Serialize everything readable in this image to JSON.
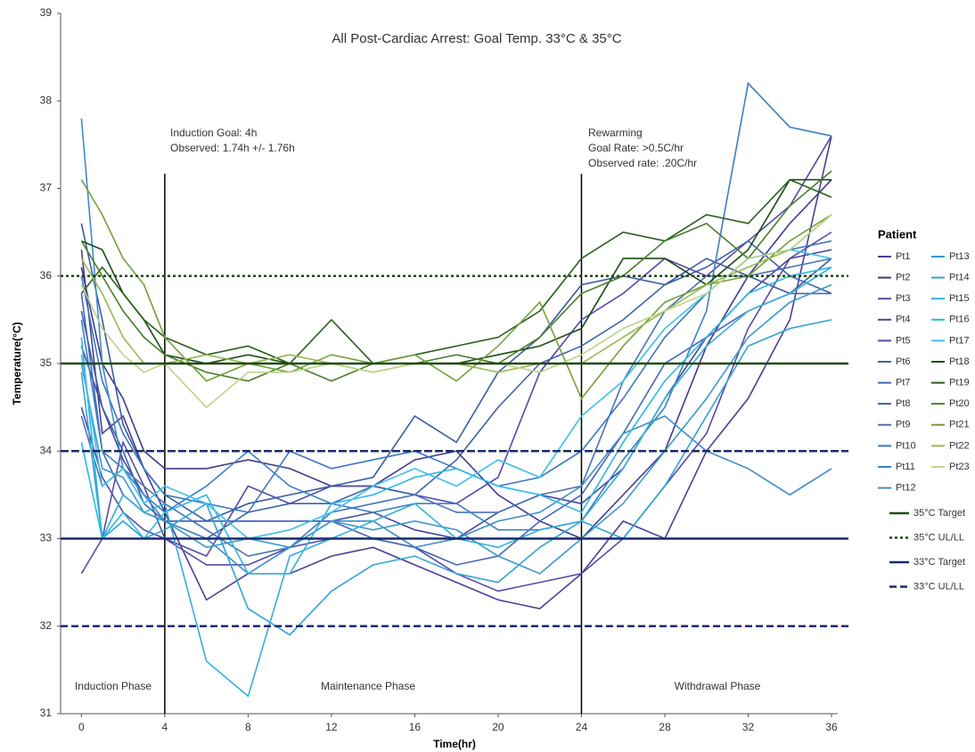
{
  "chart_data": {
    "type": "line",
    "title": "All Post-Cardiac Arrest: Goal Temp. 33°C & 35°C",
    "x_label": "Time(hr)",
    "y_label": "Temperature(°C)",
    "legend_title": "Patient",
    "xlim": [
      -1,
      36.3
    ],
    "ylim": [
      31,
      39
    ],
    "xticks": [
      0,
      4,
      8,
      12,
      16,
      20,
      24,
      28,
      32,
      36
    ],
    "yticks": [
      31,
      32,
      33,
      34,
      35,
      36,
      37,
      38,
      39
    ],
    "x": [
      0,
      1,
      2,
      3,
      4,
      6,
      8,
      10,
      12,
      14,
      16,
      18,
      20,
      22,
      24,
      26,
      28,
      30,
      32,
      34,
      36
    ],
    "series": [
      {
        "name": "Pt1",
        "color": "#4a3f96",
        "values": [
          36.3,
          34.2,
          34.4,
          33.8,
          33.3,
          32.3,
          32.6,
          32.6,
          32.8,
          32.9,
          32.7,
          32.5,
          32.3,
          32.2,
          32.6,
          33.2,
          33.0,
          34.0,
          34.6,
          35.5,
          37.6
        ]
      },
      {
        "name": "Pt2",
        "color": "#3f3a8a",
        "values": [
          36.1,
          35.0,
          34.6,
          34.0,
          33.8,
          33.8,
          33.9,
          33.8,
          33.6,
          33.6,
          33.9,
          34.0,
          33.5,
          33.2,
          33.0,
          33.5,
          34.0,
          35.2,
          36.0,
          36.6,
          37.1
        ]
      },
      {
        "name": "Pt3",
        "color": "#5a4aa6",
        "values": [
          32.6,
          33.0,
          34.1,
          33.6,
          33.0,
          32.7,
          32.7,
          32.9,
          33.0,
          33.0,
          32.9,
          32.6,
          32.4,
          32.5,
          32.6,
          33.0,
          33.6,
          34.2,
          35.4,
          36.2,
          36.5
        ]
      },
      {
        "name": "Pt4",
        "color": "#44479a",
        "values": [
          35.2,
          34.5,
          33.9,
          33.5,
          33.2,
          33.2,
          33.2,
          33.2,
          33.2,
          33.3,
          33.1,
          33.0,
          33.3,
          33.5,
          33.4,
          33.8,
          34.6,
          35.3,
          35.8,
          36.2,
          36.3
        ]
      },
      {
        "name": "Pt5",
        "color": "#5349a8",
        "values": [
          34.5,
          33.7,
          33.3,
          33.1,
          33.0,
          32.8,
          33.6,
          33.4,
          33.6,
          33.6,
          33.5,
          33.4,
          33.7,
          34.9,
          35.5,
          35.8,
          36.2,
          36.0,
          36.4,
          36.8,
          37.6
        ]
      },
      {
        "name": "Pt6",
        "color": "#3d62a8",
        "values": [
          35.6,
          34.5,
          34.0,
          33.4,
          33.2,
          33.0,
          33.3,
          33.4,
          33.4,
          33.6,
          33.5,
          33.9,
          34.5,
          35.0,
          35.2,
          35.5,
          35.9,
          36.1,
          36.4,
          36.0,
          35.8
        ]
      },
      {
        "name": "Pt7",
        "color": "#4466b8",
        "values": [
          35.8,
          34.0,
          33.5,
          33.3,
          33.2,
          33.2,
          33.2,
          33.2,
          33.2,
          33.0,
          32.9,
          32.7,
          32.8,
          33.2,
          33.5,
          34.2,
          35.0,
          35.3,
          35.6,
          35.8,
          35.8
        ]
      },
      {
        "name": "Pt8",
        "color": "#3a5ca0",
        "values": [
          36.6,
          35.5,
          34.3,
          33.8,
          33.5,
          33.2,
          33.4,
          33.5,
          33.6,
          33.7,
          34.4,
          34.1,
          34.9,
          35.3,
          35.9,
          36.0,
          35.9,
          36.2,
          36.0,
          35.8,
          36.2
        ]
      },
      {
        "name": "Pt9",
        "color": "#4a72b8",
        "values": [
          34.4,
          33.6,
          33.8,
          33.6,
          33.4,
          33.1,
          32.8,
          32.9,
          33.3,
          33.4,
          33.5,
          33.3,
          33.3,
          33.5,
          33.6,
          34.8,
          35.6,
          36.0,
          36.0,
          36.1,
          36.2
        ]
      },
      {
        "name": "Pt10",
        "color": "#3b78c0",
        "values": [
          36.0,
          34.8,
          34.2,
          33.8,
          33.5,
          33.4,
          33.3,
          34.0,
          33.8,
          33.9,
          34.0,
          33.8,
          33.6,
          33.7,
          34.0,
          34.6,
          35.3,
          35.8,
          36.2,
          36.3,
          36.4
        ]
      },
      {
        "name": "Pt11",
        "color": "#3a80c4",
        "values": [
          35.5,
          34.0,
          33.8,
          33.5,
          33.3,
          33.6,
          34.0,
          33.6,
          33.4,
          33.3,
          33.4,
          33.4,
          33.1,
          33.1,
          33.2,
          33.9,
          34.5,
          35.6,
          38.2,
          37.7,
          37.6
        ]
      },
      {
        "name": "Pt12",
        "color": "#3f8cc8",
        "values": [
          37.8,
          35.0,
          33.8,
          33.5,
          33.2,
          33.0,
          32.6,
          32.9,
          33.2,
          33.2,
          32.9,
          33.0,
          33.2,
          33.3,
          33.6,
          34.2,
          34.4,
          34.0,
          33.8,
          33.5,
          33.8
        ]
      },
      {
        "name": "Pt13",
        "color": "#3a98cc",
        "values": [
          35.0,
          33.8,
          33.7,
          33.3,
          33.2,
          32.9,
          33.0,
          32.9,
          33.2,
          33.1,
          33.2,
          33.1,
          32.8,
          32.6,
          33.0,
          33.4,
          34.0,
          34.6,
          35.3,
          35.7,
          35.9
        ]
      },
      {
        "name": "Pt14",
        "color": "#2fa4d6",
        "values": [
          34.9,
          33.0,
          33.2,
          33.0,
          33.1,
          33.4,
          32.2,
          31.9,
          32.4,
          32.7,
          32.8,
          32.6,
          32.5,
          32.9,
          33.2,
          33.0,
          33.6,
          34.4,
          35.2,
          35.4,
          35.5
        ]
      },
      {
        "name": "Pt15",
        "color": "#34aedc",
        "values": [
          35.3,
          33.0,
          33.5,
          33.3,
          33.4,
          31.6,
          31.2,
          32.8,
          33.0,
          33.2,
          33.4,
          33.0,
          32.9,
          33.1,
          33.2,
          33.8,
          34.6,
          35.2,
          35.6,
          35.8,
          36.1
        ]
      },
      {
        "name": "Pt16",
        "color": "#2cb8e4",
        "values": [
          34.1,
          33.0,
          33.3,
          33.0,
          33.3,
          33.5,
          32.6,
          32.6,
          33.4,
          33.5,
          33.7,
          33.8,
          33.6,
          33.5,
          33.3,
          34.1,
          34.8,
          35.3,
          35.8,
          36.0,
          36.1
        ]
      },
      {
        "name": "Pt17",
        "color": "#3cc0ea",
        "values": [
          35.1,
          33.6,
          33.8,
          33.4,
          33.6,
          33.4,
          33.0,
          33.1,
          33.3,
          33.6,
          33.8,
          33.6,
          33.9,
          33.7,
          34.4,
          34.8,
          35.4,
          35.8,
          36.2,
          36.3,
          36.2
        ]
      },
      {
        "name": "Pt18",
        "color": "#1b4a16",
        "values": [
          36.4,
          36.3,
          35.8,
          35.5,
          35.1,
          35.0,
          35.1,
          35.0,
          35.0,
          35.0,
          35.0,
          35.0,
          35.1,
          35.2,
          35.4,
          36.2,
          36.2,
          35.9,
          36.3,
          37.1,
          37.1
        ]
      },
      {
        "name": "Pt19",
        "color": "#2a5e1c",
        "values": [
          35.8,
          36.1,
          35.8,
          35.5,
          35.3,
          35.1,
          35.2,
          35.0,
          35.5,
          35.0,
          35.1,
          35.2,
          35.3,
          35.6,
          36.2,
          36.5,
          36.4,
          36.7,
          36.6,
          37.1,
          36.9
        ]
      },
      {
        "name": "Pt20",
        "color": "#4a7d2a",
        "values": [
          36.4,
          36.0,
          35.6,
          35.3,
          35.1,
          34.9,
          34.8,
          35.0,
          34.8,
          35.0,
          35.0,
          35.1,
          35.0,
          35.3,
          35.8,
          36.0,
          36.4,
          36.6,
          36.2,
          36.8,
          37.2
        ]
      },
      {
        "name": "Pt21",
        "color": "#74a03a",
        "values": [
          37.1,
          36.7,
          36.2,
          35.9,
          35.3,
          34.8,
          35.0,
          34.9,
          35.1,
          35.0,
          35.1,
          34.8,
          35.2,
          35.7,
          34.6,
          35.2,
          35.7,
          35.9,
          36.0,
          36.4,
          36.7
        ]
      },
      {
        "name": "Pt22",
        "color": "#98b84e",
        "values": [
          36.2,
          35.8,
          35.3,
          35.0,
          35.0,
          35.1,
          35.0,
          35.1,
          35.0,
          34.9,
          35.0,
          35.0,
          34.9,
          35.0,
          35.0,
          35.3,
          35.6,
          35.9,
          36.1,
          36.3,
          36.7
        ]
      },
      {
        "name": "Pt23",
        "color": "#bcd38a",
        "values": [
          35.9,
          35.4,
          35.1,
          34.9,
          35.0,
          34.5,
          34.9,
          34.9,
          35.0,
          34.9,
          35.0,
          35.0,
          35.0,
          34.9,
          35.1,
          35.4,
          35.6,
          35.8,
          36.2,
          36.3,
          36.7
        ]
      }
    ],
    "reference_lines": [
      {
        "name": "35°C Target",
        "values": [
          35
        ],
        "color": "#1d4a12",
        "style": "solid"
      },
      {
        "name": "35°C UL/LL",
        "values": [
          34,
          36
        ],
        "color": "#1d4a12",
        "style": "dotted"
      },
      {
        "name": "33°C Target",
        "values": [
          33
        ],
        "color": "#1a2a6e",
        "style": "solid"
      },
      {
        "name": "33°C UL/LL",
        "values": [
          32,
          34
        ],
        "color": "#1a2a6e",
        "style": "dashed"
      }
    ],
    "phase_boundaries": [
      4,
      24
    ],
    "phases": [
      "Induction Phase",
      "Maintenance Phase",
      "Withdrawal Phase"
    ],
    "annotations": [
      [
        "Induction Goal: 4h",
        "Observed: 1.74h +/- 1.76h"
      ],
      [
        "Rewarming",
        "Goal Rate: >0.5C/hr",
        "Observed rate: .20C/hr"
      ]
    ]
  }
}
